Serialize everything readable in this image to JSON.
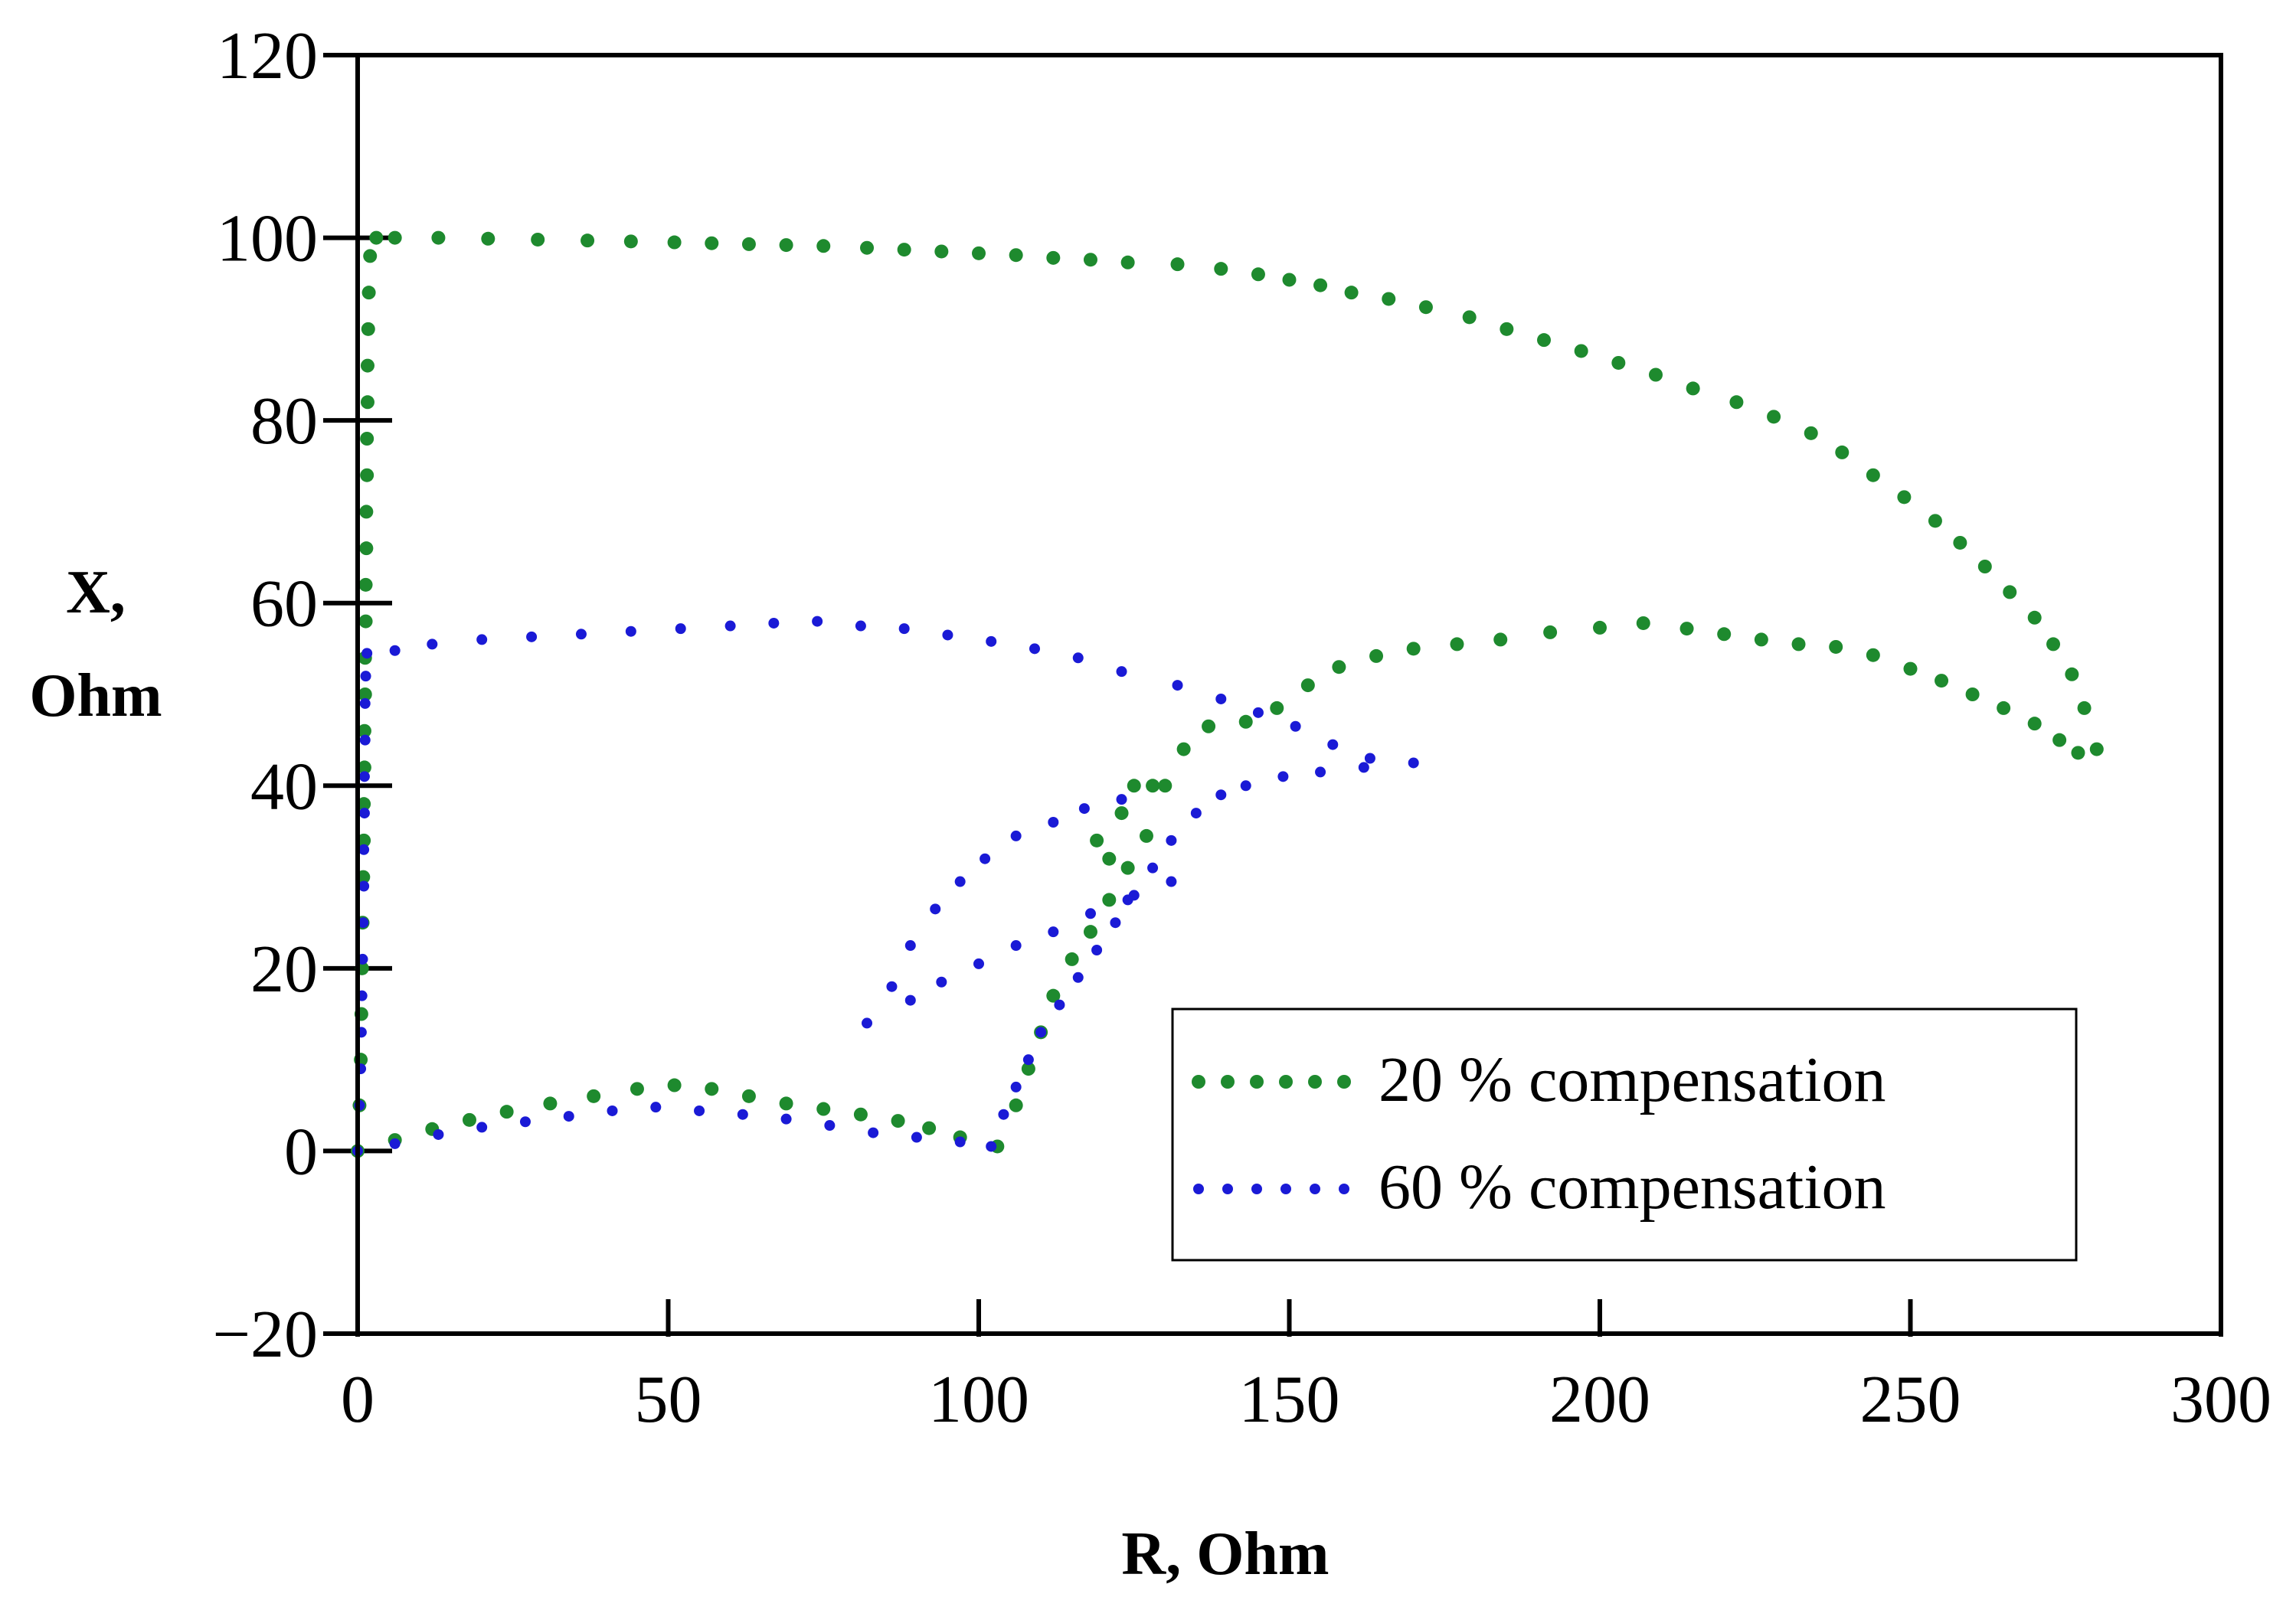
{
  "chart_data": {
    "type": "scatter",
    "title": "",
    "xlabel": "R, Ohm",
    "ylabel_line1": "X,",
    "ylabel_line2": "Ohm",
    "xlim": [
      0,
      300
    ],
    "ylim": [
      -20,
      120
    ],
    "xticks": [
      0,
      50,
      100,
      150,
      200,
      250,
      300
    ],
    "yticks": [
      -20,
      0,
      20,
      40,
      60,
      80,
      100,
      120
    ],
    "xtick_labels": [
      "0",
      "50",
      "100",
      "150",
      "200",
      "250",
      "300"
    ],
    "ytick_labels": [
      "−20",
      "0",
      "20",
      "40",
      "60",
      "80",
      "100",
      "120"
    ],
    "grid": false,
    "legend_position": "bottom-right",
    "series": [
      {
        "name": "20 % compensation",
        "color": "#1e8a2e",
        "marker": "dot",
        "points": [
          [
            0,
            0
          ],
          [
            0.3,
            5
          ],
          [
            0.5,
            10
          ],
          [
            0.6,
            15
          ],
          [
            0.7,
            20
          ],
          [
            0.8,
            25
          ],
          [
            0.9,
            30
          ],
          [
            1,
            34
          ],
          [
            1,
            38
          ],
          [
            1.1,
            42
          ],
          [
            1.1,
            46
          ],
          [
            1.2,
            50
          ],
          [
            1.2,
            54
          ],
          [
            1.3,
            58
          ],
          [
            1.3,
            62
          ],
          [
            1.4,
            66
          ],
          [
            1.4,
            70
          ],
          [
            1.5,
            74
          ],
          [
            1.5,
            78
          ],
          [
            1.6,
            82
          ],
          [
            1.6,
            86
          ],
          [
            1.7,
            90
          ],
          [
            1.8,
            94
          ],
          [
            2,
            98
          ],
          [
            3,
            100
          ],
          [
            6,
            100
          ],
          [
            13,
            100
          ],
          [
            21,
            99.9
          ],
          [
            29,
            99.8
          ],
          [
            37,
            99.7
          ],
          [
            44,
            99.6
          ],
          [
            51,
            99.5
          ],
          [
            57,
            99.4
          ],
          [
            63,
            99.3
          ],
          [
            69,
            99.2
          ],
          [
            75,
            99.1
          ],
          [
            82,
            98.9
          ],
          [
            88,
            98.7
          ],
          [
            94,
            98.5
          ],
          [
            100,
            98.3
          ],
          [
            106,
            98.1
          ],
          [
            112,
            97.8
          ],
          [
            118,
            97.6
          ],
          [
            124,
            97.3
          ],
          [
            132,
            97.1
          ],
          [
            139,
            96.6
          ],
          [
            145,
            96
          ],
          [
            150,
            95.4
          ],
          [
            155,
            94.8
          ],
          [
            160,
            94
          ],
          [
            166,
            93.3
          ],
          [
            172,
            92.4
          ],
          [
            179,
            91.3
          ],
          [
            185,
            90
          ],
          [
            191,
            88.8
          ],
          [
            197,
            87.6
          ],
          [
            203,
            86.3
          ],
          [
            209,
            85
          ],
          [
            215,
            83.5
          ],
          [
            222,
            82
          ],
          [
            228,
            80.4
          ],
          [
            234,
            78.6
          ],
          [
            239,
            76.5
          ],
          [
            244,
            74
          ],
          [
            249,
            71.6
          ],
          [
            254,
            69
          ],
          [
            258,
            66.6
          ],
          [
            262,
            64
          ],
          [
            266,
            61.2
          ],
          [
            270,
            58.4
          ],
          [
            273,
            55.5
          ],
          [
            276,
            52.2
          ],
          [
            278,
            48.5
          ],
          [
            280,
            44
          ],
          [
            6,
            1.2
          ],
          [
            12,
            2.4
          ],
          [
            18,
            3.4
          ],
          [
            24,
            4.3
          ],
          [
            31,
            5.2
          ],
          [
            38,
            6
          ],
          [
            45,
            6.8
          ],
          [
            51,
            7.2
          ],
          [
            57,
            6.8
          ],
          [
            63,
            6
          ],
          [
            69,
            5.2
          ],
          [
            75,
            4.6
          ],
          [
            81,
            4
          ],
          [
            87,
            3.3
          ],
          [
            92,
            2.5
          ],
          [
            97,
            1.5
          ],
          [
            103,
            0.5
          ],
          [
            106,
            5
          ],
          [
            108,
            9
          ],
          [
            110,
            13
          ],
          [
            112,
            17
          ],
          [
            115,
            21
          ],
          [
            118,
            24
          ],
          [
            121,
            27.5
          ],
          [
            124,
            31
          ],
          [
            127,
            34.5
          ],
          [
            130,
            40
          ],
          [
            133,
            44
          ],
          [
            137,
            46.5
          ],
          [
            143,
            47
          ],
          [
            148,
            48.5
          ],
          [
            153,
            51
          ],
          [
            158,
            53
          ],
          [
            164,
            54.2
          ],
          [
            170,
            55
          ],
          [
            177,
            55.5
          ],
          [
            184,
            56
          ],
          [
            192,
            56.8
          ],
          [
            200,
            57.3
          ],
          [
            207,
            57.8
          ],
          [
            214,
            57.2
          ],
          [
            220,
            56.6
          ],
          [
            226,
            56
          ],
          [
            232,
            55.5
          ],
          [
            238,
            55.2
          ],
          [
            244,
            54.3
          ],
          [
            250,
            52.8
          ],
          [
            255,
            51.5
          ],
          [
            260,
            50
          ],
          [
            265,
            48.5
          ],
          [
            270,
            46.8
          ],
          [
            274,
            45
          ],
          [
            277,
            43.6
          ],
          [
            119,
            34
          ],
          [
            121,
            32
          ],
          [
            123,
            37
          ],
          [
            125,
            40
          ],
          [
            128,
            40
          ]
        ]
      },
      {
        "name": "60 % compensation",
        "color": "#1a1ad6",
        "marker": "dot",
        "points": [
          [
            0,
            0
          ],
          [
            0.3,
            5
          ],
          [
            0.5,
            9
          ],
          [
            0.6,
            13
          ],
          [
            0.7,
            17
          ],
          [
            0.8,
            21
          ],
          [
            0.9,
            25
          ],
          [
            1,
            29
          ],
          [
            1,
            33
          ],
          [
            1.1,
            37
          ],
          [
            1.1,
            41
          ],
          [
            1.2,
            45
          ],
          [
            1.2,
            49
          ],
          [
            1.3,
            52
          ],
          [
            1.5,
            54.5
          ],
          [
            6,
            54.8
          ],
          [
            12,
            55.5
          ],
          [
            20,
            56
          ],
          [
            28,
            56.3
          ],
          [
            36,
            56.6
          ],
          [
            44,
            56.9
          ],
          [
            52,
            57.2
          ],
          [
            60,
            57.5
          ],
          [
            67,
            57.8
          ],
          [
            74,
            58
          ],
          [
            81,
            57.5
          ],
          [
            88,
            57.2
          ],
          [
            95,
            56.5
          ],
          [
            102,
            55.8
          ],
          [
            109,
            55
          ],
          [
            116,
            54
          ],
          [
            123,
            52.5
          ],
          [
            132,
            51
          ],
          [
            139,
            49.5
          ],
          [
            145,
            48
          ],
          [
            151,
            46.5
          ],
          [
            157,
            44.5
          ],
          [
            163,
            43
          ],
          [
            6,
            0.8
          ],
          [
            13,
            1.8
          ],
          [
            20,
            2.6
          ],
          [
            27,
            3.2
          ],
          [
            34,
            3.8
          ],
          [
            41,
            4.4
          ],
          [
            48,
            4.8
          ],
          [
            55,
            4.4
          ],
          [
            62,
            4
          ],
          [
            69,
            3.5
          ],
          [
            76,
            2.8
          ],
          [
            83,
            2
          ],
          [
            90,
            1.5
          ],
          [
            97,
            1
          ],
          [
            102,
            0.5
          ],
          [
            104,
            4
          ],
          [
            106,
            7
          ],
          [
            108,
            10
          ],
          [
            110,
            13
          ],
          [
            113,
            16
          ],
          [
            116,
            19
          ],
          [
            119,
            22
          ],
          [
            122,
            25
          ],
          [
            125,
            28
          ],
          [
            128,
            31
          ],
          [
            131,
            34
          ],
          [
            135,
            37
          ],
          [
            139,
            39
          ],
          [
            143,
            40
          ],
          [
            149,
            41
          ],
          [
            155,
            41.5
          ],
          [
            162,
            42
          ],
          [
            170,
            42.5
          ],
          [
            82,
            14
          ],
          [
            86,
            18
          ],
          [
            89,
            22.5
          ],
          [
            93,
            26.5
          ],
          [
            97,
            29.5
          ],
          [
            101,
            32
          ],
          [
            106,
            34.5
          ],
          [
            112,
            36
          ],
          [
            117,
            37.5
          ],
          [
            123,
            38.5
          ],
          [
            89,
            16.5
          ],
          [
            94,
            18.5
          ],
          [
            100,
            20.5
          ],
          [
            106,
            22.5
          ],
          [
            112,
            24
          ],
          [
            118,
            26
          ],
          [
            124,
            27.5
          ],
          [
            131,
            29.5
          ]
        ]
      }
    ]
  }
}
